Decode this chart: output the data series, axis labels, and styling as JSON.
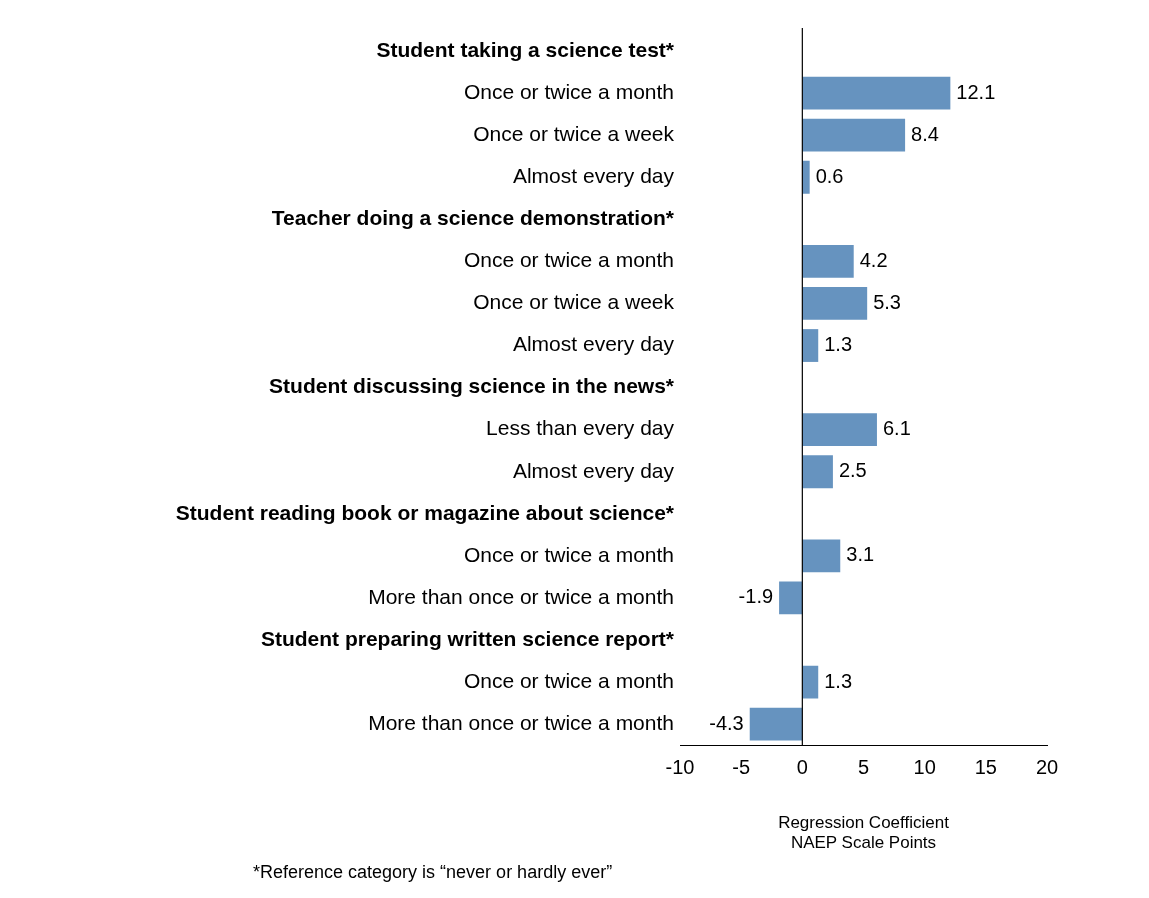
{
  "chart_data": {
    "type": "bar",
    "orientation": "horizontal",
    "categories": [
      "Student taking a science test*",
      "Once or twice a month",
      "Once or twice a week",
      "Almost every day",
      "Teacher doing a science demonstration*",
      "Once or twice a month",
      "Once or twice a week",
      "Almost every day",
      "Student discussing science in the news*",
      "Less than every day",
      "Almost every day",
      "Student reading book or magazine about science*",
      "Once or twice a month",
      "More than once or twice a month",
      "Student preparing written science report*",
      "Once or twice a month",
      "More than once or twice a month"
    ],
    "values": [
      null,
      12.1,
      8.4,
      0.6,
      null,
      4.2,
      5.3,
      1.3,
      null,
      6.1,
      2.5,
      null,
      3.1,
      -1.9,
      null,
      1.3,
      -4.3
    ],
    "color": "#6693bf",
    "xlim": [
      -10,
      20
    ],
    "xticks": [
      -10,
      -5,
      0,
      5,
      10,
      15,
      20
    ],
    "xlabel": "Regression Coefficient\nNAEP Scale Points",
    "ref_lines": [
      {
        "axis": "x",
        "value": 0,
        "color": "#000000"
      }
    ],
    "data_labels": true,
    "grid": false,
    "legend": false,
    "annotations": [
      "*Reference category is “never or hardly ever”"
    ]
  }
}
